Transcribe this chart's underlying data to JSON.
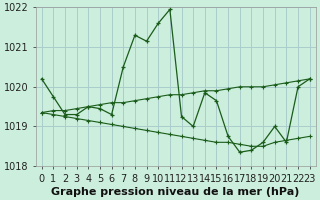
{
  "title": "Graphe pression niveau de la mer (hPa)",
  "background_color": "#cceedd",
  "grid_color": "#aacccc",
  "line_color": "#1a5c1a",
  "x_values": [
    0,
    1,
    2,
    3,
    4,
    5,
    6,
    7,
    8,
    9,
    10,
    11,
    12,
    13,
    14,
    15,
    16,
    17,
    18,
    19,
    20,
    21,
    22,
    23
  ],
  "line1": [
    1020.2,
    1019.75,
    1019.3,
    1019.3,
    1019.5,
    1019.45,
    1019.3,
    1020.5,
    1021.3,
    1021.15,
    1021.6,
    1021.95,
    1019.25,
    1019.0,
    1019.85,
    1019.65,
    1018.75,
    1018.35,
    1018.4,
    1018.6,
    1019.0,
    1018.6,
    1020.0,
    1020.2
  ],
  "line2": [
    1019.35,
    1019.4,
    1019.4,
    1019.45,
    1019.5,
    1019.55,
    1019.6,
    1019.6,
    1019.65,
    1019.7,
    1019.75,
    1019.8,
    1019.8,
    1019.85,
    1019.9,
    1019.9,
    1019.95,
    1020.0,
    1020.0,
    1020.0,
    1020.05,
    1020.1,
    1020.15,
    1020.2
  ],
  "line3": [
    1019.35,
    1019.3,
    1019.25,
    1019.2,
    1019.15,
    1019.1,
    1019.05,
    1019.0,
    1018.95,
    1018.9,
    1018.85,
    1018.8,
    1018.75,
    1018.7,
    1018.65,
    1018.6,
    1018.6,
    1018.55,
    1018.5,
    1018.5,
    1018.6,
    1018.65,
    1018.7,
    1018.75
  ],
  "ylim": [
    1018.0,
    1022.0
  ],
  "yticks": [
    1018,
    1019,
    1020,
    1021,
    1022
  ],
  "tick_fontsize": 7,
  "xlabel_fontsize": 8
}
